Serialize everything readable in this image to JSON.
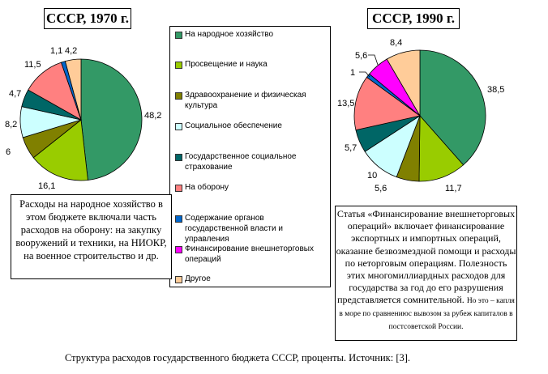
{
  "chart_data": [
    {
      "type": "pie",
      "title": "СССР, 1970 г.",
      "categories": [
        "На народное хозяйство",
        "Просвещение и наука",
        "Здравоохранение и физическая культура",
        "Социальное обеспечение",
        "Государственное социальное страхование",
        "На оборону",
        "Содержание органов государственной власти и управления",
        "Финансирование внешнеторговых операций",
        "Другое"
      ],
      "values": [
        48.2,
        16.1,
        6,
        8.2,
        4.7,
        11.5,
        1.1,
        0,
        4.2
      ],
      "value_labels": [
        "48,2",
        "16,1",
        "6",
        "8,2",
        "4,7",
        "11,5",
        "1,1",
        "",
        "4,2"
      ],
      "unit": "%"
    },
    {
      "type": "pie",
      "title": "СССР, 1990 г.",
      "categories": [
        "На народное хозяйство",
        "Просвещение и наука",
        "Здравоохранение и физическая культура",
        "Социальное обеспечение",
        "Государственное социальное страхование",
        "На оборону",
        "Содержание органов государственной власти и управления",
        "Финансирование внешнеторговых операций",
        "Другое"
      ],
      "values": [
        38.5,
        11.7,
        5.6,
        10,
        5.7,
        13.5,
        1,
        5.6,
        8.4
      ],
      "value_labels": [
        "38,5",
        "11,7",
        "5,6",
        "10",
        "5,7",
        "13,5",
        "1",
        "5,6",
        "8,4"
      ],
      "unit": "%"
    }
  ],
  "titles": {
    "left": "СССР, 1970 г.",
    "right": "СССР, 1990 г."
  },
  "colors": [
    "#339966",
    "#99CC00",
    "#808000",
    "#CCFFFF",
    "#006666",
    "#FF8080",
    "#0066CC",
    "#FF00FF",
    "#FFCC99"
  ],
  "legend": {
    "items": [
      {
        "label": "На народное хозяйство",
        "color": "#339966"
      },
      {
        "label": "Просвещение и наука",
        "color": "#99CC00"
      },
      {
        "label": "Здравоохранение и физическая культура",
        "color": "#808000"
      },
      {
        "label": "Социальное обеспечение",
        "color": "#CCFFFF"
      },
      {
        "label": "Государственное социальное страхование",
        "color": "#006666"
      },
      {
        "label": "На оборону",
        "color": "#FF8080"
      },
      {
        "label": "Содержание органов государственной власти и управления",
        "color": "#0066CC"
      },
      {
        "label": "Финансирование внешнеторговых операций",
        "color": "#FF00FF"
      },
      {
        "label": "Другое",
        "color": "#FFCC99"
      }
    ]
  },
  "notes": {
    "left": "Расходы на народное хозяйство в этом бюджете включали часть расходов на оборону: на закупку вооружений и техники, на НИОКР, на военное строительство и др.",
    "right_main": "Статья «Финансирование внешнеторговых операций» включает финансирование экспортных и импортных операций, оказание безвозмездной помощи и расходы по неторговым операциям. Полезность этих многомиллиардных расходов для государства за год до его разрушения представляется сомнительной.",
    "right_tail": "Но это – капля в море по сравнениюс вывозом за рубеж капиталов в постсоветской России."
  },
  "caption": "Структура расходов государственного бюджета СССР, проценты. Источник:  [3]."
}
